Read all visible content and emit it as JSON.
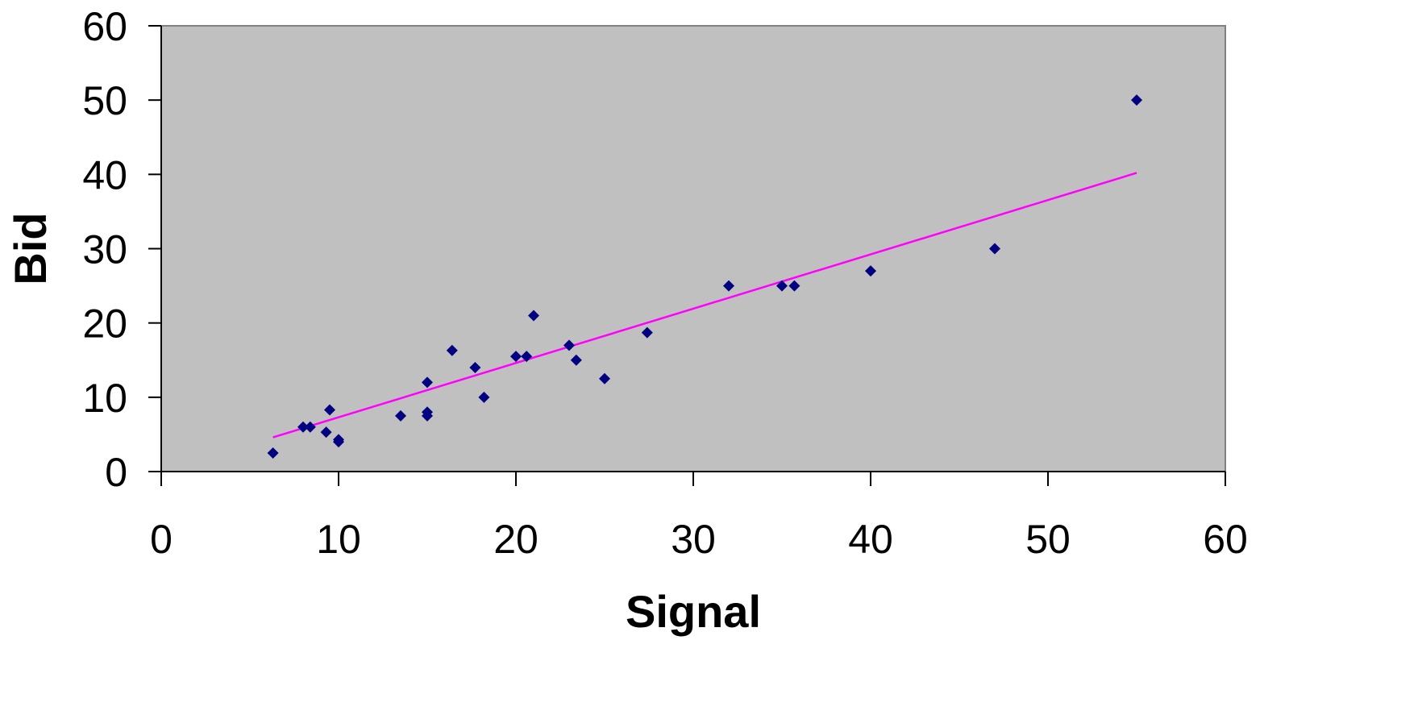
{
  "chart_data": {
    "type": "scatter",
    "title": "",
    "xlabel": "Signal",
    "ylabel": "Bid",
    "xlim": [
      0,
      60
    ],
    "ylim": [
      0,
      60
    ],
    "x_ticks": [
      0,
      10,
      20,
      30,
      40,
      50,
      60
    ],
    "y_ticks": [
      0,
      10,
      20,
      30,
      40,
      50,
      60
    ],
    "grid": false,
    "legend": "none",
    "plot_background": "#c0c0c0",
    "marker_color": "#000080",
    "trendline_color": "#ff00ff",
    "series": [
      {
        "points": [
          [
            6.3,
            2.5
          ],
          [
            8.0,
            6.0
          ],
          [
            8.4,
            6.0
          ],
          [
            9.3,
            5.3
          ],
          [
            9.5,
            8.3
          ],
          [
            10.0,
            4.0
          ],
          [
            10.0,
            4.3
          ],
          [
            13.5,
            7.5
          ],
          [
            15.0,
            8.0
          ],
          [
            15.0,
            7.5
          ],
          [
            15.0,
            12.0
          ],
          [
            16.4,
            16.3
          ],
          [
            17.7,
            14.0
          ],
          [
            18.2,
            10.0
          ],
          [
            20.0,
            15.5
          ],
          [
            20.6,
            15.5
          ],
          [
            21.0,
            21.0
          ],
          [
            23.0,
            17.0
          ],
          [
            23.4,
            15.0
          ],
          [
            25.0,
            12.5
          ],
          [
            27.4,
            18.7
          ],
          [
            32.0,
            25.0
          ],
          [
            35.0,
            25.0
          ],
          [
            35.7,
            25.0
          ],
          [
            40.0,
            27.0
          ],
          [
            47.0,
            30.0
          ],
          [
            55.0,
            50.0
          ]
        ]
      }
    ],
    "trendline": {
      "type": "linear",
      "points": [
        [
          6.3,
          4.6
        ],
        [
          55.0,
          40.2
        ]
      ]
    }
  }
}
